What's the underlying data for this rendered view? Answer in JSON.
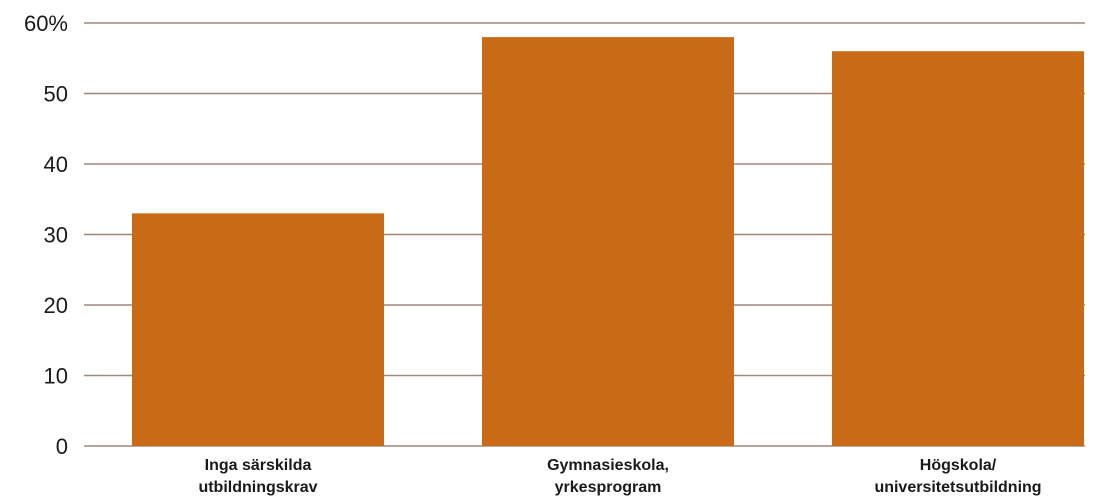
{
  "chart_data": {
    "type": "bar",
    "categories": [
      [
        "Inga särskilda",
        "utbildningskrav"
      ],
      [
        "Gymnasieskola,",
        "yrkesprogram"
      ],
      [
        "Högskola/",
        "universitetsutbildning"
      ]
    ],
    "values": [
      33,
      58,
      56
    ],
    "title": "",
    "xlabel": "",
    "ylabel": "",
    "ylim": [
      0,
      60
    ],
    "y_ticks": [
      0,
      10,
      20,
      30,
      40,
      50,
      60
    ],
    "y_tick_labels": [
      "0",
      "10",
      "20",
      "30",
      "40",
      "50",
      "60%"
    ],
    "grid": true,
    "bar_color": "#c96a17",
    "grid_color": "#a0877a"
  }
}
